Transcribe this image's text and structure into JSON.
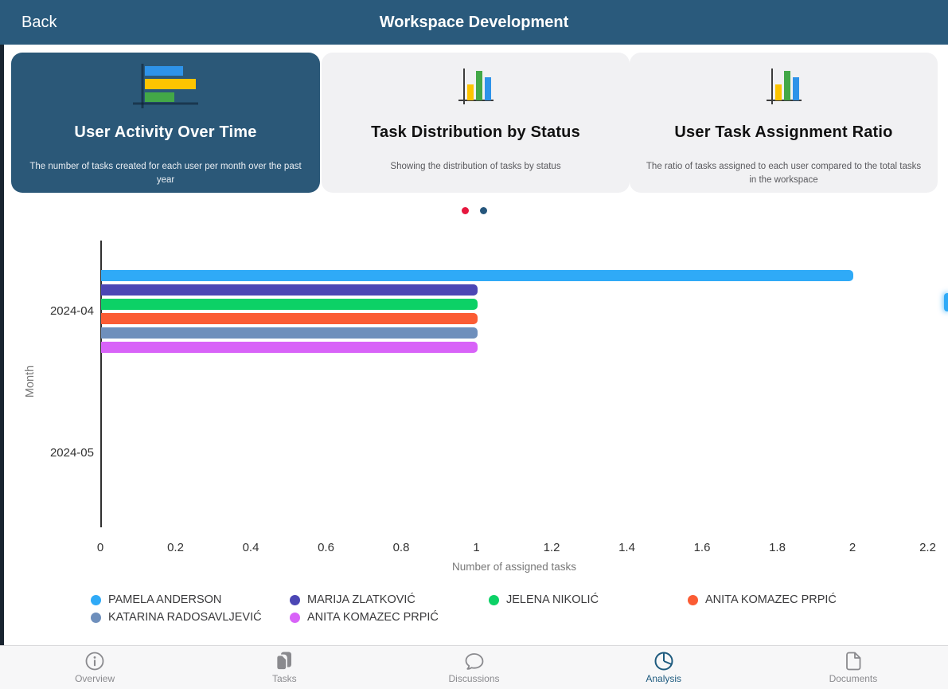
{
  "colors": {
    "topbar": "#2a5a7c",
    "active_card_bg": "#2b5878",
    "inactive_card_bg": "#f1f1f3",
    "dot_active": "#e6173e",
    "dot_inactive": "#26567c",
    "tab_active": "#1d5a7e",
    "tab_inactive": "#8a8a8e"
  },
  "topbar": {
    "back_label": "Back",
    "title": "Workspace Development"
  },
  "carousel": {
    "cards": [
      {
        "title": "User Activity Over Time",
        "description": "The number of tasks created for each user per month over the past year",
        "icon": "horizontal-bar-chart-icon",
        "active": true
      },
      {
        "title": "Task Distribution by Status",
        "description": "Showing the distribution of tasks by status",
        "icon": "vertical-bar-chart-icon",
        "active": false
      },
      {
        "title": "User Task Assignment Ratio",
        "description": "The ratio of tasks assigned to each user compared to the total tasks in the workspace",
        "icon": "vertical-bar-chart-icon",
        "active": false
      }
    ],
    "dots": {
      "count": 2,
      "active_index": 0
    }
  },
  "chart_data": {
    "type": "bar",
    "orientation": "horizontal",
    "categories": [
      "2024-04",
      "2024-05"
    ],
    "series": [
      {
        "name": "PAMELA ANDERSON",
        "color": "#2faaf7",
        "values": [
          2,
          0
        ]
      },
      {
        "name": "MARIJA ZLATKOVIĆ",
        "color": "#4b46b4",
        "values": [
          1,
          0
        ]
      },
      {
        "name": "JELENA NIKOLIĆ",
        "color": "#0cd166",
        "values": [
          1,
          0
        ]
      },
      {
        "name": "ANITA KOMAZEC PRPIĆ",
        "color": "#fb5c34",
        "values": [
          1,
          0
        ]
      },
      {
        "name": "KATARINA RADOSAVLJEVIĆ",
        "color": "#6e8fbc",
        "values": [
          1,
          0
        ]
      },
      {
        "name": "ANITA KOMAZEC PRPIĆ",
        "color": "#d863f8",
        "values": [
          1,
          0
        ]
      }
    ],
    "xlabel": "Number of assigned tasks",
    "ylabel": "Month",
    "xlim": [
      0,
      2.2
    ],
    "xticks": [
      0,
      0.2,
      0.4,
      0.6,
      0.8,
      1,
      1.2,
      1.4,
      1.6,
      1.8,
      2,
      2.2
    ],
    "grid": false,
    "legend_position": "bottom"
  },
  "tabbar": {
    "items": [
      {
        "label": "Overview",
        "icon": "info-icon",
        "active": false
      },
      {
        "label": "Tasks",
        "icon": "tasks-icon",
        "active": false
      },
      {
        "label": "Discussions",
        "icon": "discussions-icon",
        "active": false
      },
      {
        "label": "Analysis",
        "icon": "analysis-pie-icon",
        "active": true
      },
      {
        "label": "Documents",
        "icon": "document-icon",
        "active": false
      }
    ]
  }
}
